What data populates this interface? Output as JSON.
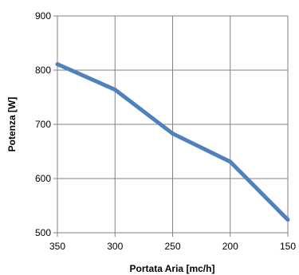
{
  "chart_data": {
    "type": "line",
    "title": "",
    "xlabel": "Portata Aria [mc/h]",
    "ylabel": "Potenza [W]",
    "x": [
      350,
      300,
      250,
      200,
      150
    ],
    "series": [
      {
        "values": [
          811,
          764,
          683,
          631,
          524
        ],
        "color": "#4f81bd"
      }
    ],
    "xlim": [
      350,
      150
    ],
    "ylim": [
      500,
      900
    ],
    "x_reversed": true,
    "x_ticks": [
      "350",
      "300",
      "250",
      "200",
      "150"
    ],
    "y_ticks": [
      "500",
      "600",
      "700",
      "800",
      "900"
    ],
    "grid": true,
    "legend": "none"
  }
}
